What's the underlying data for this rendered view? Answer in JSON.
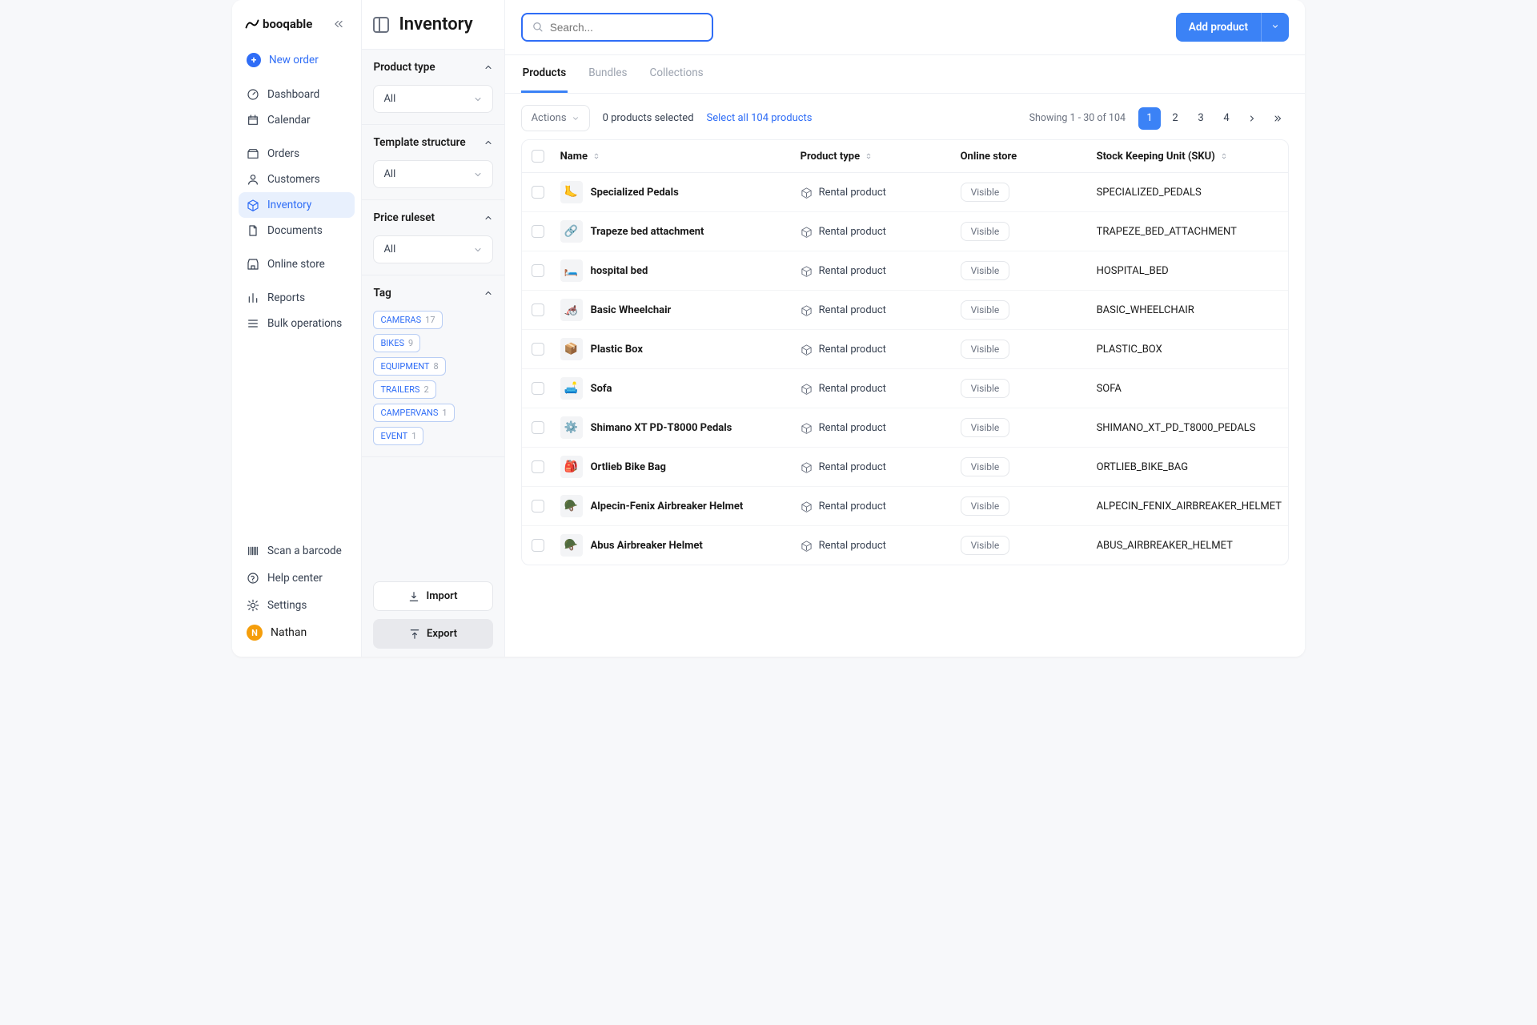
{
  "brand": "booqable",
  "header": {
    "page_title": "Inventory",
    "search_placeholder": "Search...",
    "add_product_label": "Add product"
  },
  "sidebar": {
    "new_order": "New order",
    "nav1": [
      {
        "label": "Dashboard",
        "icon": "gauge"
      },
      {
        "label": "Calendar",
        "icon": "calendar"
      }
    ],
    "nav2": [
      {
        "label": "Orders",
        "icon": "box"
      },
      {
        "label": "Customers",
        "icon": "user"
      },
      {
        "label": "Inventory",
        "icon": "package",
        "active": true
      },
      {
        "label": "Documents",
        "icon": "doc"
      }
    ],
    "nav3": [
      {
        "label": "Online store",
        "icon": "store"
      }
    ],
    "nav4": [
      {
        "label": "Reports",
        "icon": "bar"
      },
      {
        "label": "Bulk operations",
        "icon": "list"
      }
    ],
    "bottom": [
      {
        "label": "Scan a barcode",
        "icon": "barcode"
      },
      {
        "label": "Help center",
        "icon": "help"
      },
      {
        "label": "Settings",
        "icon": "gear"
      }
    ],
    "user": {
      "initial": "N",
      "name": "Nathan"
    }
  },
  "filters": {
    "sections": [
      {
        "label": "Product type",
        "value": "All"
      },
      {
        "label": "Template structure",
        "value": "All"
      },
      {
        "label": "Price ruleset",
        "value": "All"
      }
    ],
    "tag_label": "Tag",
    "tags": [
      {
        "name": "CAMERAS",
        "count": "17"
      },
      {
        "name": "BIKES",
        "count": "9"
      },
      {
        "name": "EQUIPMENT",
        "count": "8"
      },
      {
        "name": "TRAILERS",
        "count": "2"
      },
      {
        "name": "CAMPERVANS",
        "count": "1"
      },
      {
        "name": "EVENT",
        "count": "1"
      }
    ],
    "import_label": "Import",
    "export_label": "Export"
  },
  "tabs": [
    {
      "label": "Products",
      "active": true
    },
    {
      "label": "Bundles"
    },
    {
      "label": "Collections"
    }
  ],
  "controls": {
    "actions_label": "Actions",
    "selected_text": "0 products selected",
    "select_all_text": "Select all 104 products",
    "showing_text": "Showing 1 - 30 of 104",
    "pages": [
      "1",
      "2",
      "3",
      "4"
    ]
  },
  "table": {
    "headers": {
      "name": "Name",
      "ptype": "Product type",
      "store": "Online store",
      "sku": "Stock Keeping Unit (SKU)"
    },
    "ptype_value": "Rental product",
    "visible_label": "Visible",
    "rows": [
      {
        "name": "Specialized Pedals",
        "sku": "SPECIALIZED_PEDALS",
        "emoji": "🦶"
      },
      {
        "name": "Trapeze bed attachment",
        "sku": "TRAPEZE_BED_ATTACHMENT",
        "emoji": "🔗"
      },
      {
        "name": "hospital bed",
        "sku": "HOSPITAL_BED",
        "emoji": "🛏️"
      },
      {
        "name": "Basic Wheelchair",
        "sku": "BASIC_WHEELCHAIR",
        "emoji": "🦽"
      },
      {
        "name": "Plastic Box",
        "sku": "PLASTIC_BOX",
        "emoji": "📦"
      },
      {
        "name": "Sofa",
        "sku": "SOFA",
        "emoji": "🛋️"
      },
      {
        "name": "Shimano XT PD-T8000 Pedals",
        "sku": "SHIMANO_XT_PD_T8000_PEDALS",
        "emoji": "⚙️"
      },
      {
        "name": "Ortlieb Bike Bag",
        "sku": "ORTLIEB_BIKE_BAG",
        "emoji": "🎒"
      },
      {
        "name": "Alpecin-Fenix Airbreaker Helmet",
        "sku": "ALPECIN_FENIX_AIRBREAKER_HELMET",
        "emoji": "🪖"
      },
      {
        "name": "Abus Airbreaker Helmet",
        "sku": "ABUS_AIRBREAKER_HELMET",
        "emoji": "🪖"
      }
    ]
  },
  "colors": {
    "primary": "#3b82f6",
    "border": "#eef0f4",
    "text_muted": "#6b7280"
  }
}
